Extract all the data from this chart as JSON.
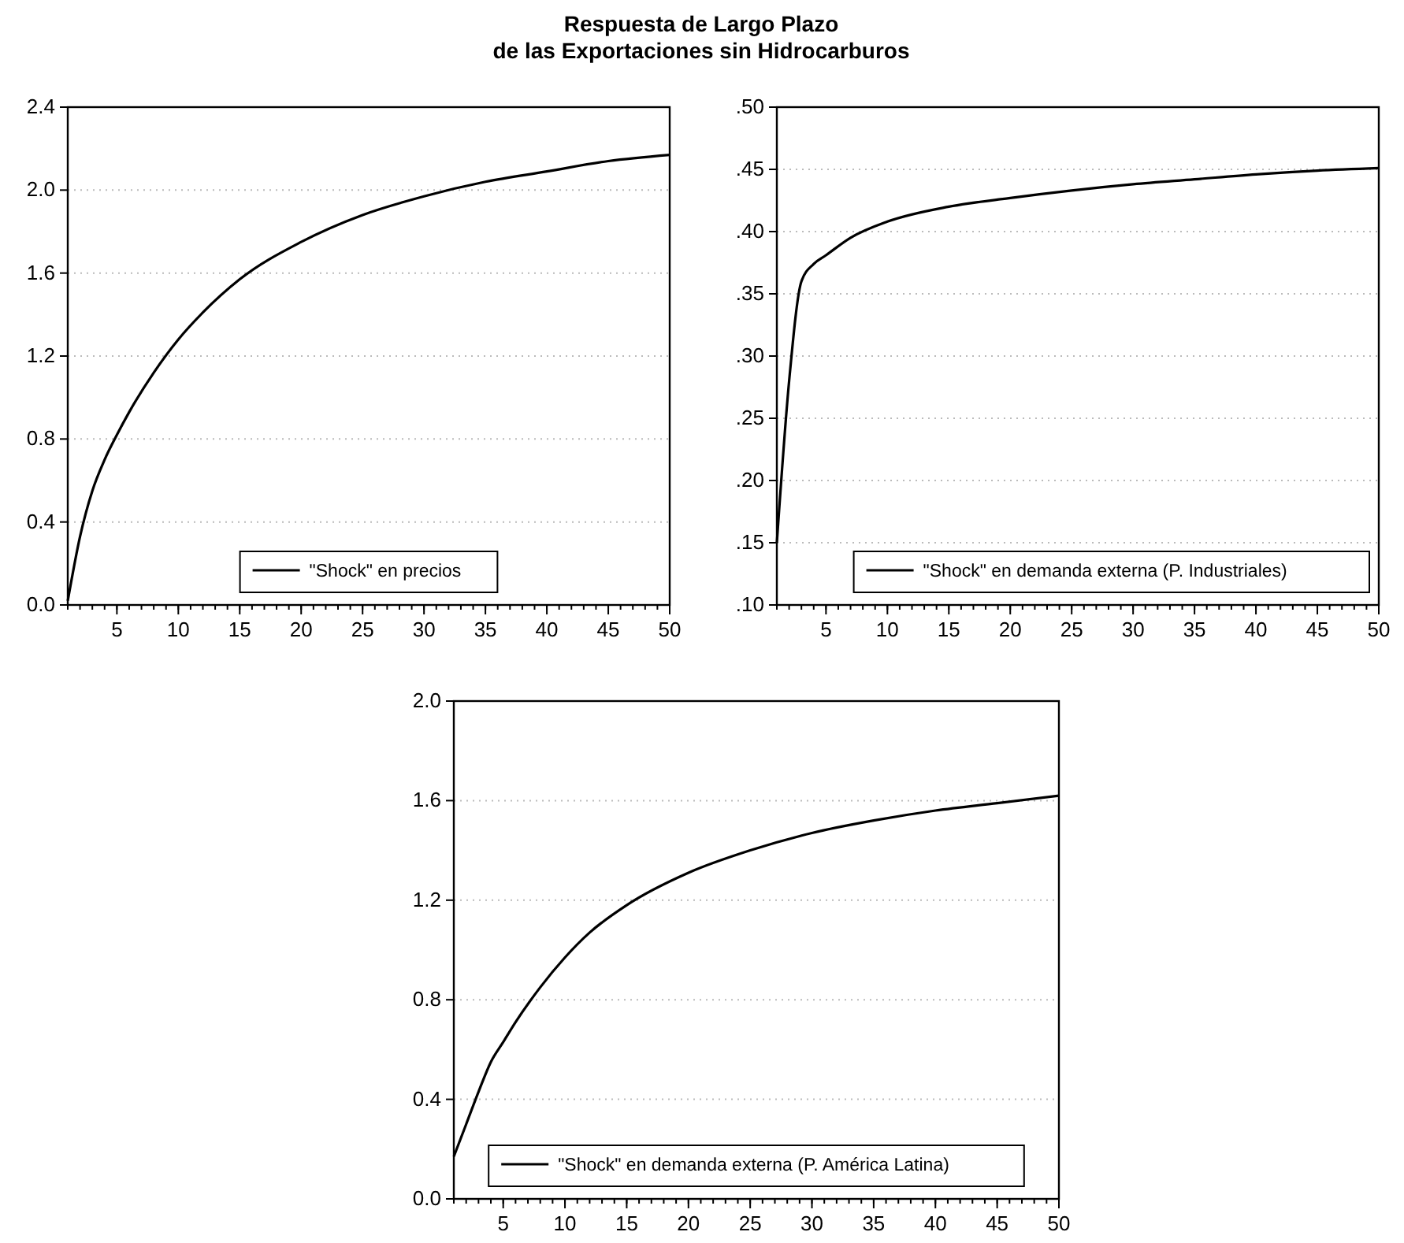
{
  "chart_data": [
    {
      "type": "line",
      "title": "Respuesta de Largo Plazo\nde las Exportaciones sin Hidrocarburos",
      "xlim": [
        1,
        50
      ],
      "xticks": [
        5,
        10,
        15,
        20,
        25,
        30,
        35,
        40,
        45,
        50
      ],
      "ylim": [
        0,
        2.4
      ],
      "yticks": [
        {
          "value": 0,
          "label": "0.0"
        },
        0.4,
        0.8,
        1.2,
        1.6,
        {
          "value": 2,
          "label": "2.0"
        },
        2.4
      ],
      "grid": "y",
      "legend": "bottom",
      "series": [
        {
          "name": "\"Shock\" en precios",
          "color": "#000000",
          "x": [
            1,
            2,
            3,
            4,
            5,
            6,
            8,
            10,
            12,
            15,
            20,
            25,
            30,
            35,
            40,
            45,
            50
          ],
          "values": [
            0.02,
            0.33,
            0.55,
            0.7,
            0.82,
            0.93,
            1.12,
            1.28,
            1.41,
            1.57,
            1.75,
            1.88,
            1.97,
            2.04,
            2.09,
            2.14,
            2.17
          ]
        }
      ]
    },
    {
      "type": "line",
      "xlim": [
        1,
        50
      ],
      "xticks": [
        5,
        10,
        15,
        20,
        25,
        30,
        35,
        40,
        45,
        50
      ],
      "ylim": [
        0.1,
        0.5
      ],
      "yticks": [
        {
          "value": 0.1,
          "label": ".10"
        },
        {
          "value": 0.15,
          "label": ".15"
        },
        {
          "value": 0.2,
          "label": ".20"
        },
        {
          "value": 0.25,
          "label": ".25"
        },
        {
          "value": 0.3,
          "label": ".30"
        },
        {
          "value": 0.35,
          "label": ".35"
        },
        {
          "value": 0.4,
          "label": ".40"
        },
        {
          "value": 0.45,
          "label": ".45"
        },
        {
          "value": 0.5,
          "label": ".50"
        }
      ],
      "grid": "y",
      "legend": "bottom right",
      "series": [
        {
          "name": "\"Shock\" en demanda externa (P. Industriales)",
          "color": "#000000",
          "x": [
            1,
            2,
            3,
            4,
            5,
            7,
            10,
            15,
            20,
            25,
            30,
            35,
            40,
            45,
            50
          ],
          "values": [
            0.15,
            0.28,
            0.36,
            0.374,
            0.381,
            0.395,
            0.408,
            0.42,
            0.427,
            0.433,
            0.438,
            0.442,
            0.446,
            0.449,
            0.451
          ]
        }
      ]
    },
    {
      "type": "line",
      "xlim": [
        1,
        50
      ],
      "xticks": [
        5,
        10,
        15,
        20,
        25,
        30,
        35,
        40,
        45,
        50
      ],
      "ylim": [
        0,
        2
      ],
      "yticks": [
        {
          "value": 0,
          "label": "0.0"
        },
        0.4,
        0.8,
        1.2,
        1.6,
        {
          "value": 2,
          "label": "2.0"
        }
      ],
      "grid": "y",
      "legend": "bottom",
      "series": [
        {
          "name": "\"Shock\" en demanda externa (P. América Latina)",
          "color": "#000000",
          "x": [
            1,
            2,
            3,
            4,
            5,
            6,
            8,
            10,
            12,
            15,
            20,
            25,
            30,
            35,
            40,
            45,
            50
          ],
          "values": [
            0.17,
            0.3,
            0.43,
            0.55,
            0.63,
            0.71,
            0.85,
            0.97,
            1.07,
            1.18,
            1.31,
            1.4,
            1.47,
            1.52,
            1.56,
            1.59,
            1.62
          ]
        }
      ]
    }
  ]
}
